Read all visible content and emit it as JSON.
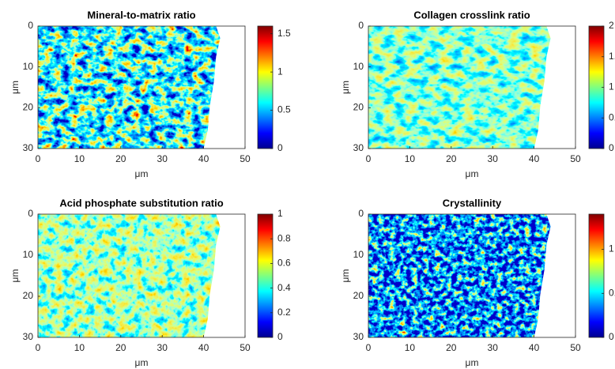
{
  "chart_data": [
    {
      "type": "heatmap",
      "title": "Mineral-to-matrix ratio",
      "xlabel": "μm",
      "ylabel": "μm",
      "xlim": [
        0,
        50
      ],
      "ylim": [
        30,
        0
      ],
      "xticks": [
        0,
        10,
        20,
        30,
        40,
        50
      ],
      "yticks": [
        0,
        10,
        20,
        30
      ],
      "colormap": "jet",
      "clim": [
        0,
        1.6
      ],
      "cticks": [
        0,
        0.5,
        1,
        1.5
      ]
    },
    {
      "type": "heatmap",
      "title": "Collagen crosslink ratio",
      "xlabel": "μm",
      "ylabel": "μm",
      "xlim": [
        0,
        50
      ],
      "ylim": [
        30,
        0
      ],
      "xticks": [
        0,
        10,
        20,
        30,
        40,
        50
      ],
      "yticks": [
        0,
        10,
        20,
        30
      ],
      "colormap": "jet",
      "clim": [
        0,
        2
      ],
      "cticks": [
        0,
        0.5,
        1,
        1.5,
        2
      ]
    },
    {
      "type": "heatmap",
      "title": "Acid phosphate substitution ratio",
      "xlabel": "μm",
      "ylabel": "μm",
      "xlim": [
        0,
        50
      ],
      "ylim": [
        30,
        0
      ],
      "xticks": [
        0,
        10,
        20,
        30,
        40,
        50
      ],
      "yticks": [
        0,
        10,
        20,
        30
      ],
      "colormap": "jet",
      "clim": [
        0,
        1
      ],
      "cticks": [
        0,
        0.2,
        0.4,
        0.6,
        0.8,
        1
      ]
    },
    {
      "type": "heatmap",
      "title": "Crystallinity",
      "xlabel": "μm",
      "ylabel": "μm",
      "xlim": [
        0,
        50
      ],
      "ylim": [
        30,
        0
      ],
      "xticks": [
        0,
        10,
        20,
        30,
        40,
        50
      ],
      "yticks": [
        0,
        10,
        20,
        30
      ],
      "colormap": "jet",
      "clim": [
        0,
        1.4
      ],
      "cticks": [
        0,
        0.5,
        1
      ]
    }
  ]
}
